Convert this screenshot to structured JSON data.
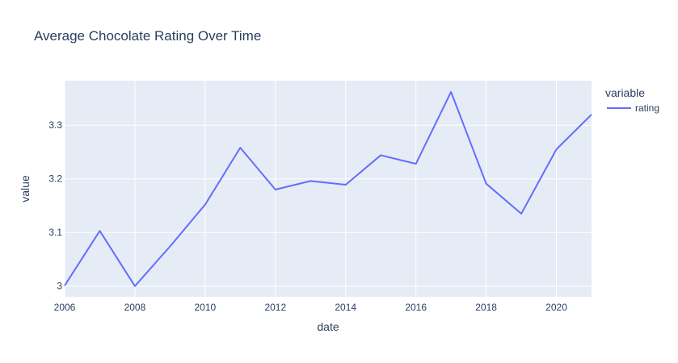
{
  "chart_data": {
    "type": "line",
    "title": "Average Chocolate Rating Over Time",
    "xlabel": "date",
    "ylabel": "value",
    "xlim": [
      2006,
      2021
    ],
    "ylim": [
      2.98,
      3.383
    ],
    "x_ticks": [
      2006,
      2008,
      2010,
      2012,
      2014,
      2016,
      2018,
      2020
    ],
    "y_ticks": [
      3,
      3.1,
      3.2,
      3.3
    ],
    "x_tick_labels": [
      "2006",
      "2008",
      "2010",
      "2012",
      "2014",
      "2016",
      "2018",
      "2020"
    ],
    "y_tick_labels": [
      "3",
      "3.1",
      "3.2",
      "3.3"
    ],
    "grid": true,
    "legend": {
      "title": "variable",
      "position": "right"
    },
    "series": [
      {
        "name": "rating",
        "color": "#636efa",
        "x": [
          2006,
          2007,
          2008,
          2009,
          2010,
          2011,
          2012,
          2013,
          2014,
          2015,
          2016,
          2017,
          2018,
          2019,
          2020,
          2021
        ],
        "y": [
          3.001,
          3.103,
          3.0,
          3.074,
          3.152,
          3.258,
          3.18,
          3.196,
          3.189,
          3.244,
          3.228,
          3.362,
          3.191,
          3.135,
          3.255,
          3.32
        ]
      }
    ]
  }
}
